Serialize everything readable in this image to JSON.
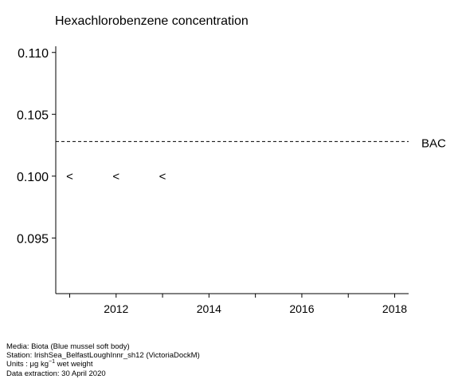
{
  "chart_data": {
    "type": "scatter",
    "title": "Hexachlorobenzene concentration",
    "xlabel": "",
    "ylabel": "",
    "xlim": [
      2010.7,
      2018.3
    ],
    "ylim": [
      0.0905,
      0.1105
    ],
    "x_ticks": [
      2011,
      2012,
      2013,
      2014,
      2015,
      2016,
      2017,
      2018
    ],
    "x_tick_labels": [
      {
        "value": 2012,
        "label": "2012"
      },
      {
        "value": 2014,
        "label": "2014"
      },
      {
        "value": 2016,
        "label": "2016"
      },
      {
        "value": 2018,
        "label": "2018"
      }
    ],
    "y_ticks": [
      {
        "value": 0.095,
        "label": "0.095"
      },
      {
        "value": 0.1,
        "label": "0.100"
      },
      {
        "value": 0.105,
        "label": "0.105"
      },
      {
        "value": 0.11,
        "label": "0.110"
      }
    ],
    "series": [
      {
        "marker": "<",
        "points": [
          {
            "x": 2011,
            "y": 0.1
          },
          {
            "x": 2012,
            "y": 0.1
          },
          {
            "x": 2013,
            "y": 0.1
          }
        ]
      }
    ],
    "reference_lines": [
      {
        "label": "BAC",
        "y": 0.1028,
        "style": "dashed"
      }
    ],
    "grid": false
  },
  "footer": {
    "media": "Media: Biota (Blue mussel soft body)",
    "station": "Station: IrishSea_BelfastLoughInnr_sh12 (VictoriaDockM)",
    "units_prefix": "Units : μg kg",
    "units_exp": "−1",
    "units_suffix": " wet weight",
    "extraction": "Data extraction: 30 April 2020"
  }
}
